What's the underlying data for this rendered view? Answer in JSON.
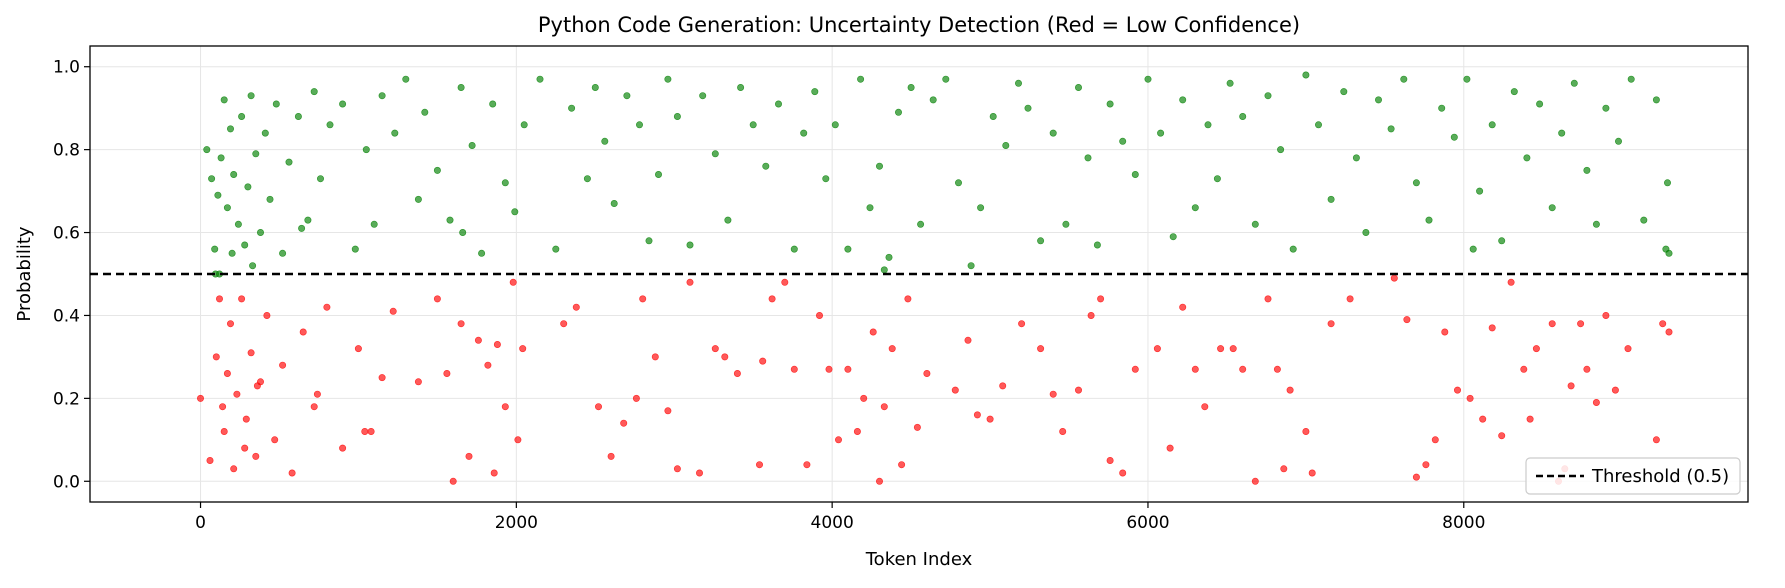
{
  "chart_data": {
    "type": "scatter",
    "title": "Python Code Generation: Uncertainty Detection (Red = Low Confidence)",
    "xlabel": "Token Index",
    "ylabel": "Probability",
    "xlim": [
      -700,
      9800
    ],
    "ylim": [
      -0.05,
      1.05
    ],
    "xticks": [
      0,
      2000,
      4000,
      6000,
      8000
    ],
    "yticks": [
      0.0,
      0.2,
      0.4,
      0.6,
      0.8,
      1.0
    ],
    "ytick_labels": [
      "0.0",
      "0.2",
      "0.4",
      "0.6",
      "0.8",
      "1.0"
    ],
    "grid": true,
    "legend": {
      "position": "lower-right",
      "entries": [
        "Threshold (0.5)"
      ]
    },
    "colors": {
      "high": "#008000",
      "low": "#ff0000",
      "threshold": "#000000"
    },
    "threshold": {
      "label": "Threshold (0.5)",
      "value": 0.5,
      "style": "dashed"
    },
    "token_count": 9300,
    "series": [
      {
        "color": "#008000",
        "description_rule": "probability >= 0.5",
        "points": [
          [
            40,
            0.8
          ],
          [
            70,
            0.73
          ],
          [
            90,
            0.56
          ],
          [
            110,
            0.69
          ],
          [
            130,
            0.78
          ],
          [
            150,
            0.92
          ],
          [
            170,
            0.66
          ],
          [
            190,
            0.85
          ],
          [
            210,
            0.74
          ],
          [
            240,
            0.62
          ],
          [
            260,
            0.88
          ],
          [
            280,
            0.57
          ],
          [
            300,
            0.71
          ],
          [
            320,
            0.93
          ],
          [
            350,
            0.79
          ],
          [
            380,
            0.6
          ],
          [
            410,
            0.84
          ],
          [
            440,
            0.68
          ],
          [
            480,
            0.91
          ],
          [
            520,
            0.55
          ],
          [
            560,
            0.77
          ],
          [
            620,
            0.88
          ],
          [
            680,
            0.63
          ],
          [
            720,
            0.94
          ],
          [
            760,
            0.73
          ],
          [
            820,
            0.86
          ],
          [
            900,
            0.91
          ],
          [
            980,
            0.56
          ],
          [
            1050,
            0.8
          ],
          [
            1100,
            0.62
          ],
          [
            1150,
            0.93
          ],
          [
            1230,
            0.84
          ],
          [
            1300,
            0.97
          ],
          [
            1380,
            0.68
          ],
          [
            1420,
            0.89
          ],
          [
            1500,
            0.75
          ],
          [
            1580,
            0.63
          ],
          [
            1650,
            0.95
          ],
          [
            1720,
            0.81
          ],
          [
            1780,
            0.55
          ],
          [
            1850,
            0.91
          ],
          [
            1930,
            0.72
          ],
          [
            1990,
            0.65
          ],
          [
            2050,
            0.86
          ],
          [
            2150,
            0.97
          ],
          [
            2250,
            0.56
          ],
          [
            2350,
            0.9
          ],
          [
            2450,
            0.73
          ],
          [
            2500,
            0.95
          ],
          [
            2560,
            0.82
          ],
          [
            2620,
            0.67
          ],
          [
            2700,
            0.93
          ],
          [
            2780,
            0.86
          ],
          [
            2840,
            0.58
          ],
          [
            2900,
            0.74
          ],
          [
            2960,
            0.97
          ],
          [
            3020,
            0.88
          ],
          [
            3100,
            0.57
          ],
          [
            3180,
            0.93
          ],
          [
            3260,
            0.79
          ],
          [
            3340,
            0.63
          ],
          [
            3420,
            0.95
          ],
          [
            3500,
            0.86
          ],
          [
            3580,
            0.76
          ],
          [
            3660,
            0.91
          ],
          [
            3760,
            0.56
          ],
          [
            3820,
            0.84
          ],
          [
            3890,
            0.94
          ],
          [
            3960,
            0.73
          ],
          [
            4020,
            0.86
          ],
          [
            4100,
            0.56
          ],
          [
            4180,
            0.97
          ],
          [
            4240,
            0.66
          ],
          [
            4300,
            0.76
          ],
          [
            4360,
            0.54
          ],
          [
            4420,
            0.89
          ],
          [
            4500,
            0.95
          ],
          [
            4560,
            0.62
          ],
          [
            4640,
            0.92
          ],
          [
            4720,
            0.97
          ],
          [
            4800,
            0.72
          ],
          [
            4880,
            0.52
          ],
          [
            4940,
            0.66
          ],
          [
            5020,
            0.88
          ],
          [
            5100,
            0.81
          ],
          [
            5180,
            0.96
          ],
          [
            5240,
            0.9
          ],
          [
            5320,
            0.58
          ],
          [
            5400,
            0.84
          ],
          [
            5480,
            0.62
          ],
          [
            5560,
            0.95
          ],
          [
            5620,
            0.78
          ],
          [
            5680,
            0.57
          ],
          [
            5760,
            0.91
          ],
          [
            5840,
            0.82
          ],
          [
            5920,
            0.74
          ],
          [
            6000,
            0.97
          ],
          [
            6080,
            0.84
          ],
          [
            6160,
            0.59
          ],
          [
            6220,
            0.92
          ],
          [
            6300,
            0.66
          ],
          [
            6380,
            0.86
          ],
          [
            6440,
            0.73
          ],
          [
            6520,
            0.96
          ],
          [
            6600,
            0.88
          ],
          [
            6680,
            0.62
          ],
          [
            6760,
            0.93
          ],
          [
            6840,
            0.8
          ],
          [
            6920,
            0.56
          ],
          [
            7000,
            0.98
          ],
          [
            7080,
            0.86
          ],
          [
            7160,
            0.68
          ],
          [
            7240,
            0.94
          ],
          [
            7320,
            0.78
          ],
          [
            7380,
            0.6
          ],
          [
            7460,
            0.92
          ],
          [
            7540,
            0.85
          ],
          [
            7620,
            0.97
          ],
          [
            7700,
            0.72
          ],
          [
            7780,
            0.63
          ],
          [
            7860,
            0.9
          ],
          [
            7940,
            0.83
          ],
          [
            8020,
            0.97
          ],
          [
            8100,
            0.7
          ],
          [
            8180,
            0.86
          ],
          [
            8240,
            0.58
          ],
          [
            8320,
            0.94
          ],
          [
            8400,
            0.78
          ],
          [
            8480,
            0.91
          ],
          [
            8560,
            0.66
          ],
          [
            8620,
            0.84
          ],
          [
            8700,
            0.96
          ],
          [
            8780,
            0.75
          ],
          [
            8840,
            0.62
          ],
          [
            8900,
            0.9
          ],
          [
            8980,
            0.82
          ],
          [
            9060,
            0.97
          ],
          [
            9140,
            0.63
          ],
          [
            9220,
            0.92
          ],
          [
            9290,
            0.72
          ],
          [
            9300,
            0.55
          ],
          [
            9280,
            0.56
          ],
          [
            120,
            0.5
          ],
          [
            95,
            0.5
          ],
          [
            200,
            0.55
          ],
          [
            330,
            0.52
          ],
          [
            640,
            0.61
          ],
          [
            1660,
            0.6
          ],
          [
            4330,
            0.51
          ],
          [
            8060,
            0.56
          ]
        ]
      },
      {
        "color": "#ff0000",
        "description_rule": "probability < 0.5",
        "points": [
          [
            0,
            0.2
          ],
          [
            60,
            0.05
          ],
          [
            100,
            0.3
          ],
          [
            120,
            0.44
          ],
          [
            150,
            0.12
          ],
          [
            170,
            0.26
          ],
          [
            190,
            0.38
          ],
          [
            210,
            0.03
          ],
          [
            230,
            0.21
          ],
          [
            260,
            0.44
          ],
          [
            290,
            0.15
          ],
          [
            320,
            0.31
          ],
          [
            350,
            0.06
          ],
          [
            380,
            0.24
          ],
          [
            420,
            0.4
          ],
          [
            470,
            0.1
          ],
          [
            520,
            0.28
          ],
          [
            580,
            0.02
          ],
          [
            650,
            0.36
          ],
          [
            720,
            0.18
          ],
          [
            800,
            0.42
          ],
          [
            900,
            0.08
          ],
          [
            1000,
            0.32
          ],
          [
            1080,
            0.12
          ],
          [
            1150,
            0.25
          ],
          [
            1220,
            0.41
          ],
          [
            1380,
            0.24
          ],
          [
            1500,
            0.44
          ],
          [
            1560,
            0.26
          ],
          [
            1600,
            0.0
          ],
          [
            1650,
            0.38
          ],
          [
            1700,
            0.06
          ],
          [
            1760,
            0.34
          ],
          [
            1820,
            0.28
          ],
          [
            1860,
            0.02
          ],
          [
            1930,
            0.18
          ],
          [
            1980,
            0.48
          ],
          [
            2010,
            0.1
          ],
          [
            2040,
            0.32
          ],
          [
            2300,
            0.38
          ],
          [
            2380,
            0.42
          ],
          [
            2520,
            0.18
          ],
          [
            2600,
            0.06
          ],
          [
            2680,
            0.14
          ],
          [
            2760,
            0.2
          ],
          [
            2800,
            0.44
          ],
          [
            2880,
            0.3
          ],
          [
            2960,
            0.17
          ],
          [
            3020,
            0.03
          ],
          [
            3100,
            0.48
          ],
          [
            3160,
            0.02
          ],
          [
            3260,
            0.32
          ],
          [
            3320,
            0.3
          ],
          [
            3400,
            0.26
          ],
          [
            3540,
            0.04
          ],
          [
            3560,
            0.29
          ],
          [
            3620,
            0.44
          ],
          [
            3700,
            0.48
          ],
          [
            3760,
            0.27
          ],
          [
            3840,
            0.04
          ],
          [
            3920,
            0.4
          ],
          [
            3980,
            0.27
          ],
          [
            4040,
            0.1
          ],
          [
            4100,
            0.27
          ],
          [
            4160,
            0.12
          ],
          [
            4200,
            0.2
          ],
          [
            4260,
            0.36
          ],
          [
            4300,
            0.0
          ],
          [
            4330,
            0.18
          ],
          [
            4380,
            0.32
          ],
          [
            4440,
            0.04
          ],
          [
            4480,
            0.44
          ],
          [
            4540,
            0.13
          ],
          [
            4600,
            0.26
          ],
          [
            4780,
            0.22
          ],
          [
            4860,
            0.34
          ],
          [
            4920,
            0.16
          ],
          [
            5000,
            0.15
          ],
          [
            5080,
            0.23
          ],
          [
            5200,
            0.38
          ],
          [
            5320,
            0.32
          ],
          [
            5400,
            0.21
          ],
          [
            5460,
            0.12
          ],
          [
            5560,
            0.22
          ],
          [
            5640,
            0.4
          ],
          [
            5700,
            0.44
          ],
          [
            5760,
            0.05
          ],
          [
            5840,
            0.02
          ],
          [
            5920,
            0.27
          ],
          [
            6060,
            0.32
          ],
          [
            6140,
            0.08
          ],
          [
            6220,
            0.42
          ],
          [
            6300,
            0.27
          ],
          [
            6360,
            0.18
          ],
          [
            6460,
            0.32
          ],
          [
            6540,
            0.32
          ],
          [
            6600,
            0.27
          ],
          [
            6680,
            0.0
          ],
          [
            6760,
            0.44
          ],
          [
            6820,
            0.27
          ],
          [
            6860,
            0.03
          ],
          [
            6900,
            0.22
          ],
          [
            7000,
            0.12
          ],
          [
            7040,
            0.02
          ],
          [
            7160,
            0.38
          ],
          [
            7280,
            0.44
          ],
          [
            7560,
            0.49
          ],
          [
            7640,
            0.39
          ],
          [
            7700,
            0.01
          ],
          [
            7760,
            0.04
          ],
          [
            7820,
            0.1
          ],
          [
            7880,
            0.36
          ],
          [
            7960,
            0.22
          ],
          [
            8040,
            0.2
          ],
          [
            8120,
            0.15
          ],
          [
            8180,
            0.37
          ],
          [
            8240,
            0.11
          ],
          [
            8300,
            0.48
          ],
          [
            8380,
            0.27
          ],
          [
            8420,
            0.15
          ],
          [
            8460,
            0.32
          ],
          [
            8560,
            0.38
          ],
          [
            8600,
            0.0
          ],
          [
            8640,
            0.03
          ],
          [
            8680,
            0.23
          ],
          [
            8740,
            0.38
          ],
          [
            8780,
            0.27
          ],
          [
            8840,
            0.19
          ],
          [
            8900,
            0.4
          ],
          [
            8960,
            0.22
          ],
          [
            9040,
            0.32
          ],
          [
            9220,
            0.1
          ],
          [
            9300,
            0.36
          ],
          [
            9260,
            0.38
          ],
          [
            140,
            0.18
          ],
          [
            280,
            0.08
          ],
          [
            360,
            0.23
          ],
          [
            740,
            0.21
          ],
          [
            1040,
            0.12
          ],
          [
            1880,
            0.33
          ]
        ]
      }
    ]
  }
}
